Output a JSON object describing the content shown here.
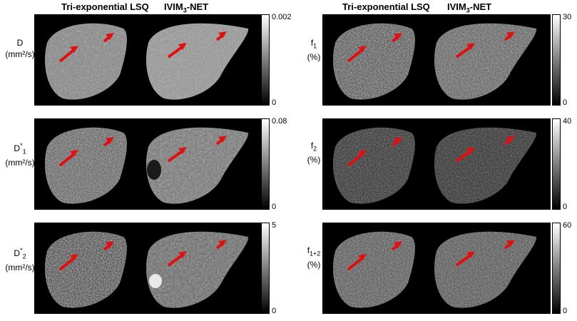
{
  "headers": {
    "left_lsq": "Tri-exponential LSQ",
    "left_net_prefix": "IVIM",
    "left_net_sub": "3",
    "left_net_suffix": "-NET",
    "right_lsq": "Tri-exponential LSQ",
    "right_net_prefix": "IVIM",
    "right_net_sub": "3",
    "right_net_suffix": "-NET"
  },
  "rows_left": [
    {
      "symbol": "D",
      "unit": "(mm²/s)",
      "cbar_max": "0.002",
      "cbar_min": "0"
    },
    {
      "symbol": "D",
      "sub": "1",
      "sup": "*",
      "unit": "(mm²/s)",
      "cbar_max": "0.08",
      "cbar_min": "0"
    },
    {
      "symbol": "D",
      "sub": "2",
      "sup": "*",
      "unit": "(mm²/s)",
      "cbar_max": "5",
      "cbar_min": "0"
    }
  ],
  "rows_right": [
    {
      "symbol": "f",
      "sub": "1",
      "unit": "(%)",
      "cbar_max": "30",
      "cbar_min": "0"
    },
    {
      "symbol": "f",
      "sub": "2",
      "unit": "(%)",
      "cbar_max": "40",
      "cbar_min": "0"
    },
    {
      "symbol": "f",
      "sub": "1+2",
      "unit": "(%)",
      "cbar_max": "60",
      "cbar_min": "0"
    }
  ],
  "colors": {
    "arrow": "#e01010",
    "background": "#000000",
    "page": "#ffffff"
  }
}
